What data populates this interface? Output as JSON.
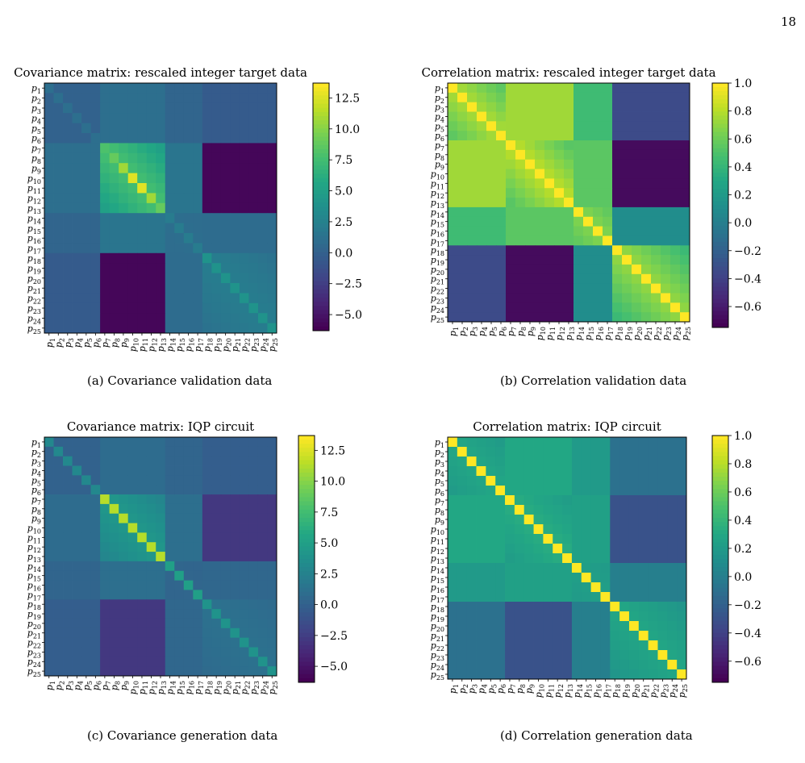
{
  "page_number": "18",
  "colormap": "viridis",
  "captions": [
    "(a) Covariance validation data",
    "(b) Correlation validation data",
    "(c) Covariance generation data",
    "(d) Correlation generation data"
  ],
  "chart_data": [
    {
      "type": "heatmap",
      "title": "Covariance matrix: rescaled integer target data",
      "labels": [
        "p1",
        "p2",
        "p3",
        "p4",
        "p5",
        "p6",
        "p7",
        "p8",
        "p9",
        "p10",
        "p11",
        "p12",
        "p13",
        "p14",
        "p15",
        "p16",
        "p17",
        "p18",
        "p19",
        "p20",
        "p21",
        "p22",
        "p23",
        "p24",
        "p25"
      ],
      "vmin": -6.3,
      "vmax": 13.7,
      "colorbar_ticks": [
        12.5,
        10.0,
        7.5,
        5.0,
        2.5,
        0.0,
        -2.5,
        -5.0
      ],
      "colorbar_tick_labels": [
        "12.5",
        "10.0",
        "7.5",
        "5.0",
        "2.5",
        "0.0",
        "−2.5",
        "−5.0"
      ],
      "regions": {
        "groups": [
          [
            1,
            6
          ],
          [
            7,
            13
          ],
          [
            14,
            17
          ],
          [
            18,
            25
          ]
        ],
        "diag": [
          1.0,
          13.7,
          2.0,
          4.0
        ],
        "off": [
          [
            0.0,
            1.0,
            0.2,
            -0.5
          ],
          [
            1.0,
            8.0,
            1.5,
            -6.0
          ],
          [
            0.2,
            1.5,
            1.0,
            0.8
          ],
          [
            -0.5,
            -6.0,
            0.8,
            2.2
          ]
        ],
        "center_peak": true
      }
    },
    {
      "type": "heatmap",
      "title": "Correlation matrix: rescaled integer target data",
      "labels": [
        "p1",
        "p2",
        "p3",
        "p4",
        "p5",
        "p6",
        "p7",
        "p8",
        "p9",
        "p10",
        "p11",
        "p12",
        "p13",
        "p14",
        "p15",
        "p16",
        "p17",
        "p18",
        "p19",
        "p20",
        "p21",
        "p22",
        "p23",
        "p24",
        "p25"
      ],
      "vmin": -0.75,
      "vmax": 1.0,
      "colorbar_ticks": [
        1.0,
        0.8,
        0.6,
        0.4,
        0.2,
        0.0,
        -0.2,
        -0.4,
        -0.6
      ],
      "colorbar_tick_labels": [
        "1.0",
        "0.8",
        "0.6",
        "0.4",
        "0.2",
        "0.0",
        "−0.2",
        "−0.4",
        "−0.6"
      ],
      "regions": {
        "groups": [
          [
            1,
            6
          ],
          [
            7,
            13
          ],
          [
            14,
            17
          ],
          [
            18,
            25
          ]
        ],
        "diag": [
          1.0,
          1.0,
          1.0,
          1.0
        ],
        "off": [
          [
            0.8,
            0.75,
            0.45,
            -0.35
          ],
          [
            0.75,
            0.85,
            0.55,
            -0.7
          ],
          [
            0.45,
            0.55,
            0.7,
            0.1
          ],
          [
            -0.35,
            -0.7,
            0.1,
            0.75
          ]
        ],
        "center_peak": false
      }
    },
    {
      "type": "heatmap",
      "title": "Covariance matrix: IQP circuit",
      "labels": [
        "p1",
        "p2",
        "p3",
        "p4",
        "p5",
        "p6",
        "p7",
        "p8",
        "p9",
        "p10",
        "p11",
        "p12",
        "p13",
        "p14",
        "p15",
        "p16",
        "p17",
        "p18",
        "p19",
        "p20",
        "p21",
        "p22",
        "p23",
        "p24",
        "p25"
      ],
      "vmin": -6.3,
      "vmax": 13.7,
      "colorbar_ticks": [
        12.5,
        10.0,
        7.5,
        5.0,
        2.5,
        0.0,
        -2.5,
        -5.0
      ],
      "colorbar_tick_labels": [
        "12.5",
        "10.0",
        "7.5",
        "5.0",
        "2.5",
        "0.0",
        "−2.5",
        "−5.0"
      ],
      "regions": {
        "groups": [
          [
            1,
            6
          ],
          [
            7,
            13
          ],
          [
            14,
            17
          ],
          [
            18,
            25
          ]
        ],
        "diag": [
          3.0,
          11.5,
          5.0,
          4.0
        ],
        "off": [
          [
            0.0,
            0.8,
            0.2,
            -0.3
          ],
          [
            0.8,
            4.5,
            1.0,
            -3.0
          ],
          [
            0.2,
            1.0,
            0.3,
            0.4
          ],
          [
            -0.3,
            -3.0,
            0.4,
            1.2
          ]
        ],
        "center_peak": false
      }
    },
    {
      "type": "heatmap",
      "title": "Correlation matrix: IQP circuit",
      "labels": [
        "p1",
        "p2",
        "p3",
        "p4",
        "p5",
        "p6",
        "p7",
        "p8",
        "p9",
        "p10",
        "p11",
        "p12",
        "p13",
        "p14",
        "p15",
        "p16",
        "p17",
        "p18",
        "p19",
        "p20",
        "p21",
        "p22",
        "p23",
        "p24",
        "p25"
      ],
      "vmin": -0.75,
      "vmax": 1.0,
      "colorbar_ticks": [
        1.0,
        0.8,
        0.6,
        0.4,
        0.2,
        0.0,
        -0.2,
        -0.4,
        -0.6
      ],
      "colorbar_tick_labels": [
        "1.0",
        "0.8",
        "0.6",
        "0.4",
        "0.2",
        "0.0",
        "−0.2",
        "−0.4",
        "−0.6"
      ],
      "regions": {
        "groups": [
          [
            1,
            6
          ],
          [
            7,
            13
          ],
          [
            14,
            17
          ],
          [
            18,
            25
          ]
        ],
        "diag": [
          1.0,
          1.0,
          1.0,
          1.0
        ],
        "off": [
          [
            0.3,
            0.3,
            0.2,
            -0.1
          ],
          [
            0.3,
            0.35,
            0.25,
            -0.3
          ],
          [
            0.2,
            0.25,
            0.25,
            0.0
          ],
          [
            -0.1,
            -0.3,
            0.0,
            0.3
          ]
        ],
        "center_peak": false
      }
    }
  ]
}
